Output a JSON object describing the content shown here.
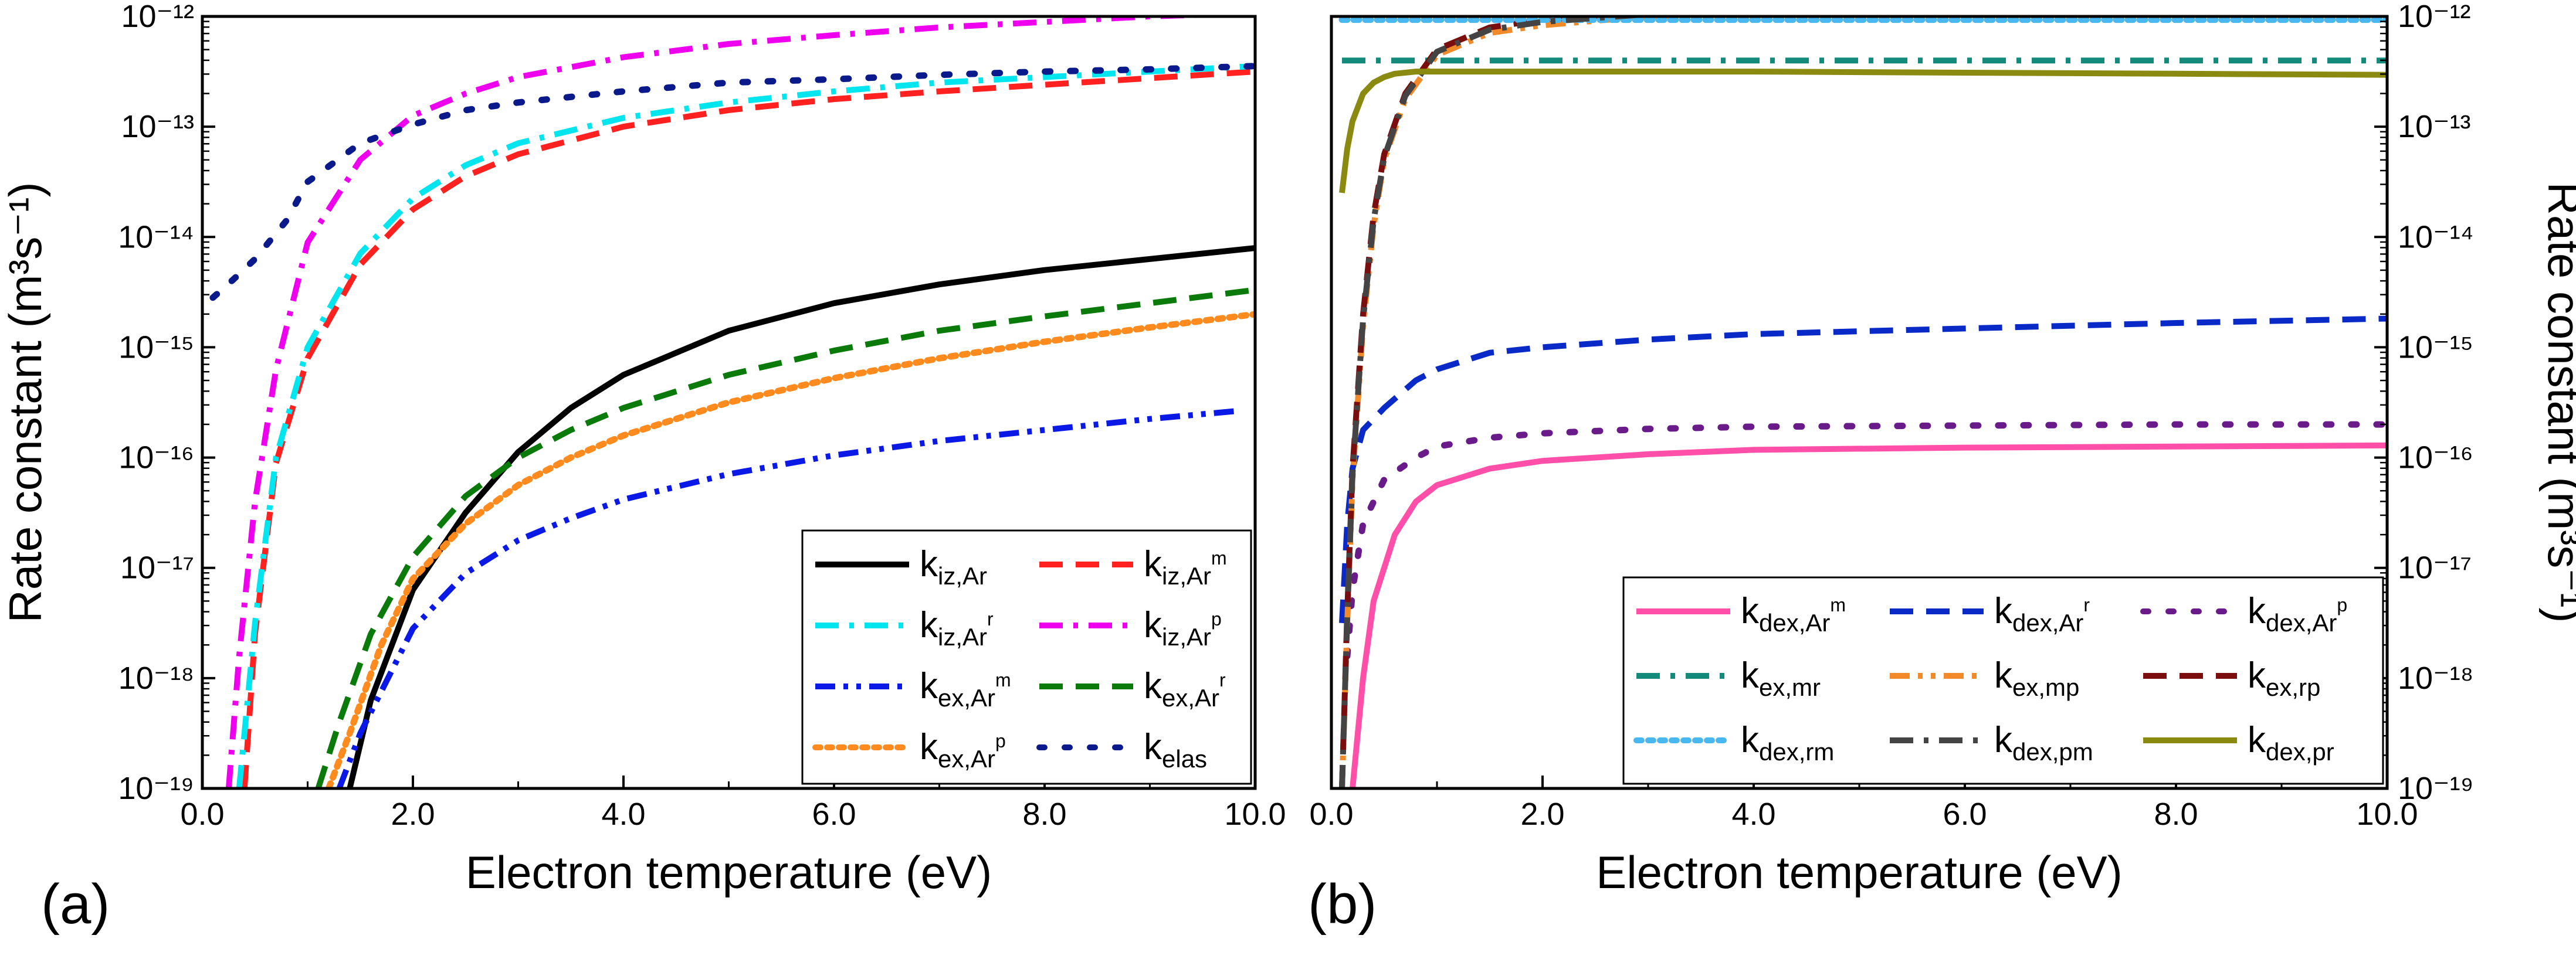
{
  "chart_data": [
    {
      "panel_label": "(a)",
      "type": "line",
      "xlabel": "Electron temperature (eV)",
      "ylabel": "Rate constant (m³s⁻¹)",
      "xlim": [
        0,
        10
      ],
      "ylim_exponents": [
        -19,
        -12
      ],
      "y_scale": "log",
      "x_tick_labels": [
        "0.0",
        "2.0",
        "4.0",
        "6.0",
        "8.0",
        "10.0"
      ],
      "y_tick_labels": [
        "10⁻¹⁹",
        "10⁻¹⁸",
        "10⁻¹⁷",
        "10⁻¹⁶",
        "10⁻¹⁵",
        "10⁻¹⁴",
        "10⁻¹³",
        "10⁻¹²"
      ],
      "legend": "bottom-right",
      "grid": false,
      "series": [
        {
          "name": "k_iz,Ar",
          "legend_main": "k",
          "legend_sub": "iz,Ar",
          "legend_sup": "",
          "color": "#000000",
          "dash": "solid",
          "x": [
            1.4,
            1.6,
            2.0,
            2.5,
            3.0,
            3.5,
            4.0,
            5.0,
            6.0,
            7.0,
            8.0,
            9.0,
            10.0
          ],
          "y": [
            -19.0,
            -18.2,
            -17.2,
            -16.5,
            -15.95,
            -15.55,
            -15.25,
            -14.85,
            -14.6,
            -14.43,
            -14.3,
            -14.2,
            -14.1
          ]
        },
        {
          "name": "k_iz,Ar^m",
          "legend_main": "k",
          "legend_sub": "iz,Ar",
          "legend_sup": "m",
          "color": "#ff2020",
          "dash": "dashed",
          "x": [
            0.4,
            0.5,
            0.7,
            1.0,
            1.5,
            2.0,
            2.5,
            3.0,
            4.0,
            5.0,
            6.0,
            7.0,
            8.0,
            9.0,
            10.0
          ],
          "y": [
            -19.0,
            -17.6,
            -16.05,
            -15.1,
            -14.25,
            -13.75,
            -13.45,
            -13.25,
            -13.0,
            -12.85,
            -12.75,
            -12.68,
            -12.62,
            -12.56,
            -12.5
          ]
        },
        {
          "name": "k_iz,Ar^r",
          "legend_main": "k",
          "legend_sub": "iz,Ar",
          "legend_sup": "r",
          "color": "#00e5ee",
          "dash": "dashdot",
          "x": [
            0.35,
            0.5,
            0.7,
            1.0,
            1.5,
            2.0,
            2.5,
            3.0,
            4.0,
            5.0,
            6.0,
            7.0,
            8.0,
            9.0,
            10.0
          ],
          "y": [
            -19.0,
            -17.5,
            -16.0,
            -15.0,
            -14.15,
            -13.65,
            -13.35,
            -13.15,
            -12.92,
            -12.78,
            -12.68,
            -12.6,
            -12.55,
            -12.5,
            -12.45
          ]
        },
        {
          "name": "k_iz,Ar^p",
          "legend_main": "k",
          "legend_sub": "iz,Ar",
          "legend_sup": "p",
          "color": "#ee00ee",
          "dash": "dashdot",
          "x": [
            0.25,
            0.35,
            0.5,
            0.7,
            1.0,
            1.5,
            2.0,
            2.5,
            3.0,
            4.0,
            5.0,
            6.0,
            7.0,
            8.0,
            9.0,
            10.0
          ],
          "y": [
            -19.0,
            -17.8,
            -16.4,
            -15.2,
            -14.05,
            -13.3,
            -12.9,
            -12.7,
            -12.55,
            -12.37,
            -12.25,
            -12.17,
            -12.1,
            -12.05,
            -12.0,
            -11.97
          ]
        },
        {
          "name": "k_ex,Ar^m",
          "legend_main": "k",
          "legend_sub": "ex,Ar",
          "legend_sup": "m",
          "color": "#0a19e6",
          "dash": "dashdotdot",
          "x": [
            1.3,
            1.5,
            2.0,
            2.5,
            3.0,
            3.5,
            4.0,
            5.0,
            6.0,
            7.0,
            8.0,
            9.0,
            9.8
          ],
          "y": [
            -19.0,
            -18.5,
            -17.55,
            -17.05,
            -16.75,
            -16.55,
            -16.38,
            -16.15,
            -15.98,
            -15.85,
            -15.75,
            -15.65,
            -15.58
          ]
        },
        {
          "name": "k_ex,Ar^r",
          "legend_main": "k",
          "legend_sub": "ex,Ar",
          "legend_sup": "r",
          "color": "#0a7a0a",
          "dash": "dashed",
          "x": [
            1.1,
            1.3,
            1.6,
            2.0,
            2.5,
            3.0,
            3.5,
            4.0,
            5.0,
            6.0,
            7.0,
            8.0,
            9.0,
            10.0
          ],
          "y": [
            -19.0,
            -18.4,
            -17.6,
            -16.9,
            -16.35,
            -16.0,
            -15.75,
            -15.55,
            -15.25,
            -15.03,
            -14.85,
            -14.72,
            -14.6,
            -14.48
          ]
        },
        {
          "name": "k_ex,Ar^p",
          "legend_main": "k",
          "legend_sub": "ex,Ar",
          "legend_sup": "p",
          "color": "#ff8a1e",
          "dash": "dotted",
          "x": [
            1.2,
            1.4,
            1.7,
            2.0,
            2.5,
            3.0,
            3.5,
            4.0,
            5.0,
            6.0,
            7.0,
            8.0,
            9.0,
            10.0
          ],
          "y": [
            -19.0,
            -18.5,
            -17.7,
            -17.1,
            -16.6,
            -16.25,
            -16.0,
            -15.8,
            -15.5,
            -15.28,
            -15.1,
            -14.95,
            -14.82,
            -14.7
          ]
        },
        {
          "name": "k_elas",
          "legend_main": "k",
          "legend_sub": "elas",
          "legend_sup": "",
          "color": "#0b1a8a",
          "dash": "sparsedot",
          "x": [
            0.1,
            0.3,
            0.5,
            0.8,
            1.0,
            1.5,
            2.0,
            2.5,
            3.0,
            4.0,
            5.0,
            6.0,
            7.0,
            8.0,
            9.0,
            10.0
          ],
          "y": [
            -14.55,
            -14.38,
            -14.2,
            -13.85,
            -13.5,
            -13.15,
            -12.98,
            -12.85,
            -12.78,
            -12.68,
            -12.6,
            -12.57,
            -12.53,
            -12.5,
            -12.48,
            -12.45
          ]
        }
      ]
    },
    {
      "panel_label": "(b)",
      "type": "line",
      "xlabel": "Electron temperature (eV)",
      "ylabel": "Rate constant (m³s⁻¹)",
      "xlim": [
        0,
        10
      ],
      "ylim_exponents": [
        -19,
        -12
      ],
      "y_scale": "log",
      "x_tick_labels": [
        "0.0",
        "2.0",
        "4.0",
        "6.0",
        "8.0",
        "10.0"
      ],
      "y_tick_labels": [
        "10⁻¹⁹",
        "10⁻¹⁸",
        "10⁻¹⁷",
        "10⁻¹⁶",
        "10⁻¹⁵",
        "10⁻¹⁴",
        "10⁻¹³",
        "10⁻¹²"
      ],
      "legend": "bottom-right",
      "grid": false,
      "series": [
        {
          "name": "k_dex,Ar^m",
          "legend_main": "k",
          "legend_sub": "dex,Ar",
          "legend_sup": "m",
          "color": "#ff4fa8",
          "dash": "solid",
          "x": [
            0.2,
            0.3,
            0.4,
            0.6,
            0.8,
            1.0,
            1.5,
            2.0,
            3.0,
            4.0,
            6.0,
            8.0,
            10.0
          ],
          "y": [
            -19.0,
            -18.0,
            -17.3,
            -16.7,
            -16.4,
            -16.25,
            -16.1,
            -16.03,
            -15.97,
            -15.93,
            -15.91,
            -15.9,
            -15.89
          ]
        },
        {
          "name": "k_dex,Ar^r",
          "legend_main": "k",
          "legend_sub": "dex,Ar",
          "legend_sup": "r",
          "color": "#0a2ac8",
          "dash": "dashed",
          "x": [
            0.1,
            0.15,
            0.2,
            0.3,
            0.5,
            0.8,
            1.0,
            1.5,
            2.0,
            3.0,
            4.0,
            6.0,
            8.0,
            10.0
          ],
          "y": [
            -17.5,
            -16.6,
            -16.1,
            -15.75,
            -15.55,
            -15.3,
            -15.2,
            -15.05,
            -15.0,
            -14.93,
            -14.88,
            -14.83,
            -14.78,
            -14.74
          ]
        },
        {
          "name": "k_dex,Ar^p",
          "legend_main": "k",
          "legend_sub": "dex,Ar",
          "legend_sup": "p",
          "color": "#6a1b8a",
          "dash": "sparsedot",
          "x": [
            0.15,
            0.2,
            0.3,
            0.5,
            0.8,
            1.0,
            1.5,
            2.0,
            3.0,
            4.0,
            6.0,
            8.0,
            10.0
          ],
          "y": [
            -17.8,
            -17.2,
            -16.6,
            -16.2,
            -16.0,
            -15.9,
            -15.82,
            -15.78,
            -15.74,
            -15.72,
            -15.71,
            -15.7,
            -15.7
          ]
        },
        {
          "name": "k_ex,mr",
          "legend_main": "k",
          "legend_sub": "ex,mr",
          "legend_sup": "",
          "color": "#138a7a",
          "dash": "dashdot",
          "x": [
            0.1,
            10.0
          ],
          "y": [
            -12.4,
            -12.4
          ]
        },
        {
          "name": "k_ex,mp",
          "legend_main": "k",
          "legend_sub": "ex,mp",
          "legend_sup": "",
          "color": "#f28a2a",
          "dash": "dashdotdot",
          "x": [
            0.1,
            0.15,
            0.2,
            0.3,
            0.4,
            0.5,
            0.7,
            1.0,
            1.5,
            2.0,
            3.0,
            4.0,
            6.0,
            8.0,
            10.0
          ],
          "y": [
            -19.0,
            -17.5,
            -16.2,
            -14.8,
            -13.9,
            -13.3,
            -12.75,
            -12.35,
            -12.15,
            -12.08,
            -12.0,
            -11.97,
            -11.94,
            -11.92,
            -11.9
          ]
        },
        {
          "name": "k_ex,rp",
          "legend_main": "k",
          "legend_sub": "ex,rp",
          "legend_sup": "",
          "color": "#7a0e0e",
          "dash": "dashed",
          "x": [
            0.1,
            0.15,
            0.2,
            0.3,
            0.4,
            0.5,
            0.7,
            1.0,
            1.5,
            2.0,
            3.0,
            4.0,
            6.0,
            8.0,
            10.0
          ],
          "y": [
            -19.0,
            -17.4,
            -16.1,
            -14.7,
            -13.8,
            -13.25,
            -12.7,
            -12.3,
            -12.1,
            -12.03,
            -11.96,
            -11.93,
            -11.9,
            -11.88,
            -11.86
          ]
        },
        {
          "name": "k_dex,rm",
          "legend_main": "k",
          "legend_sub": "dex,rm",
          "legend_sup": "",
          "color": "#4ab8f0",
          "dash": "dotted",
          "x": [
            0.1,
            10.0
          ],
          "y": [
            -12.03,
            -12.03
          ]
        },
        {
          "name": "k_dex,pm",
          "legend_main": "k",
          "legend_sub": "dex,pm",
          "legend_sup": "",
          "color": "#444444",
          "dash": "dashdot",
          "x": [
            0.1,
            0.15,
            0.2,
            0.3,
            0.4,
            0.5,
            0.7,
            1.0,
            1.5,
            2.0,
            3.0,
            4.0,
            6.0,
            8.0,
            10.0
          ],
          "y": [
            -19.0,
            -17.45,
            -16.15,
            -14.75,
            -13.85,
            -13.28,
            -12.72,
            -12.32,
            -12.12,
            -12.05,
            -11.98,
            -11.95,
            -11.92,
            -11.9,
            -11.88
          ]
        },
        {
          "name": "k_dex,pr",
          "legend_main": "k",
          "legend_sub": "dex,pr",
          "legend_sup": "",
          "color": "#8a8a10",
          "dash": "solid",
          "x": [
            0.1,
            0.15,
            0.2,
            0.3,
            0.4,
            0.5,
            0.6,
            0.8,
            1.0,
            1.5,
            2.0,
            4.0,
            6.0,
            8.0,
            10.0
          ],
          "y": [
            -13.6,
            -13.2,
            -12.95,
            -12.7,
            -12.6,
            -12.55,
            -12.52,
            -12.5,
            -12.5,
            -12.5,
            -12.5,
            -12.5,
            -12.51,
            -12.52,
            -12.53
          ]
        }
      ]
    }
  ]
}
